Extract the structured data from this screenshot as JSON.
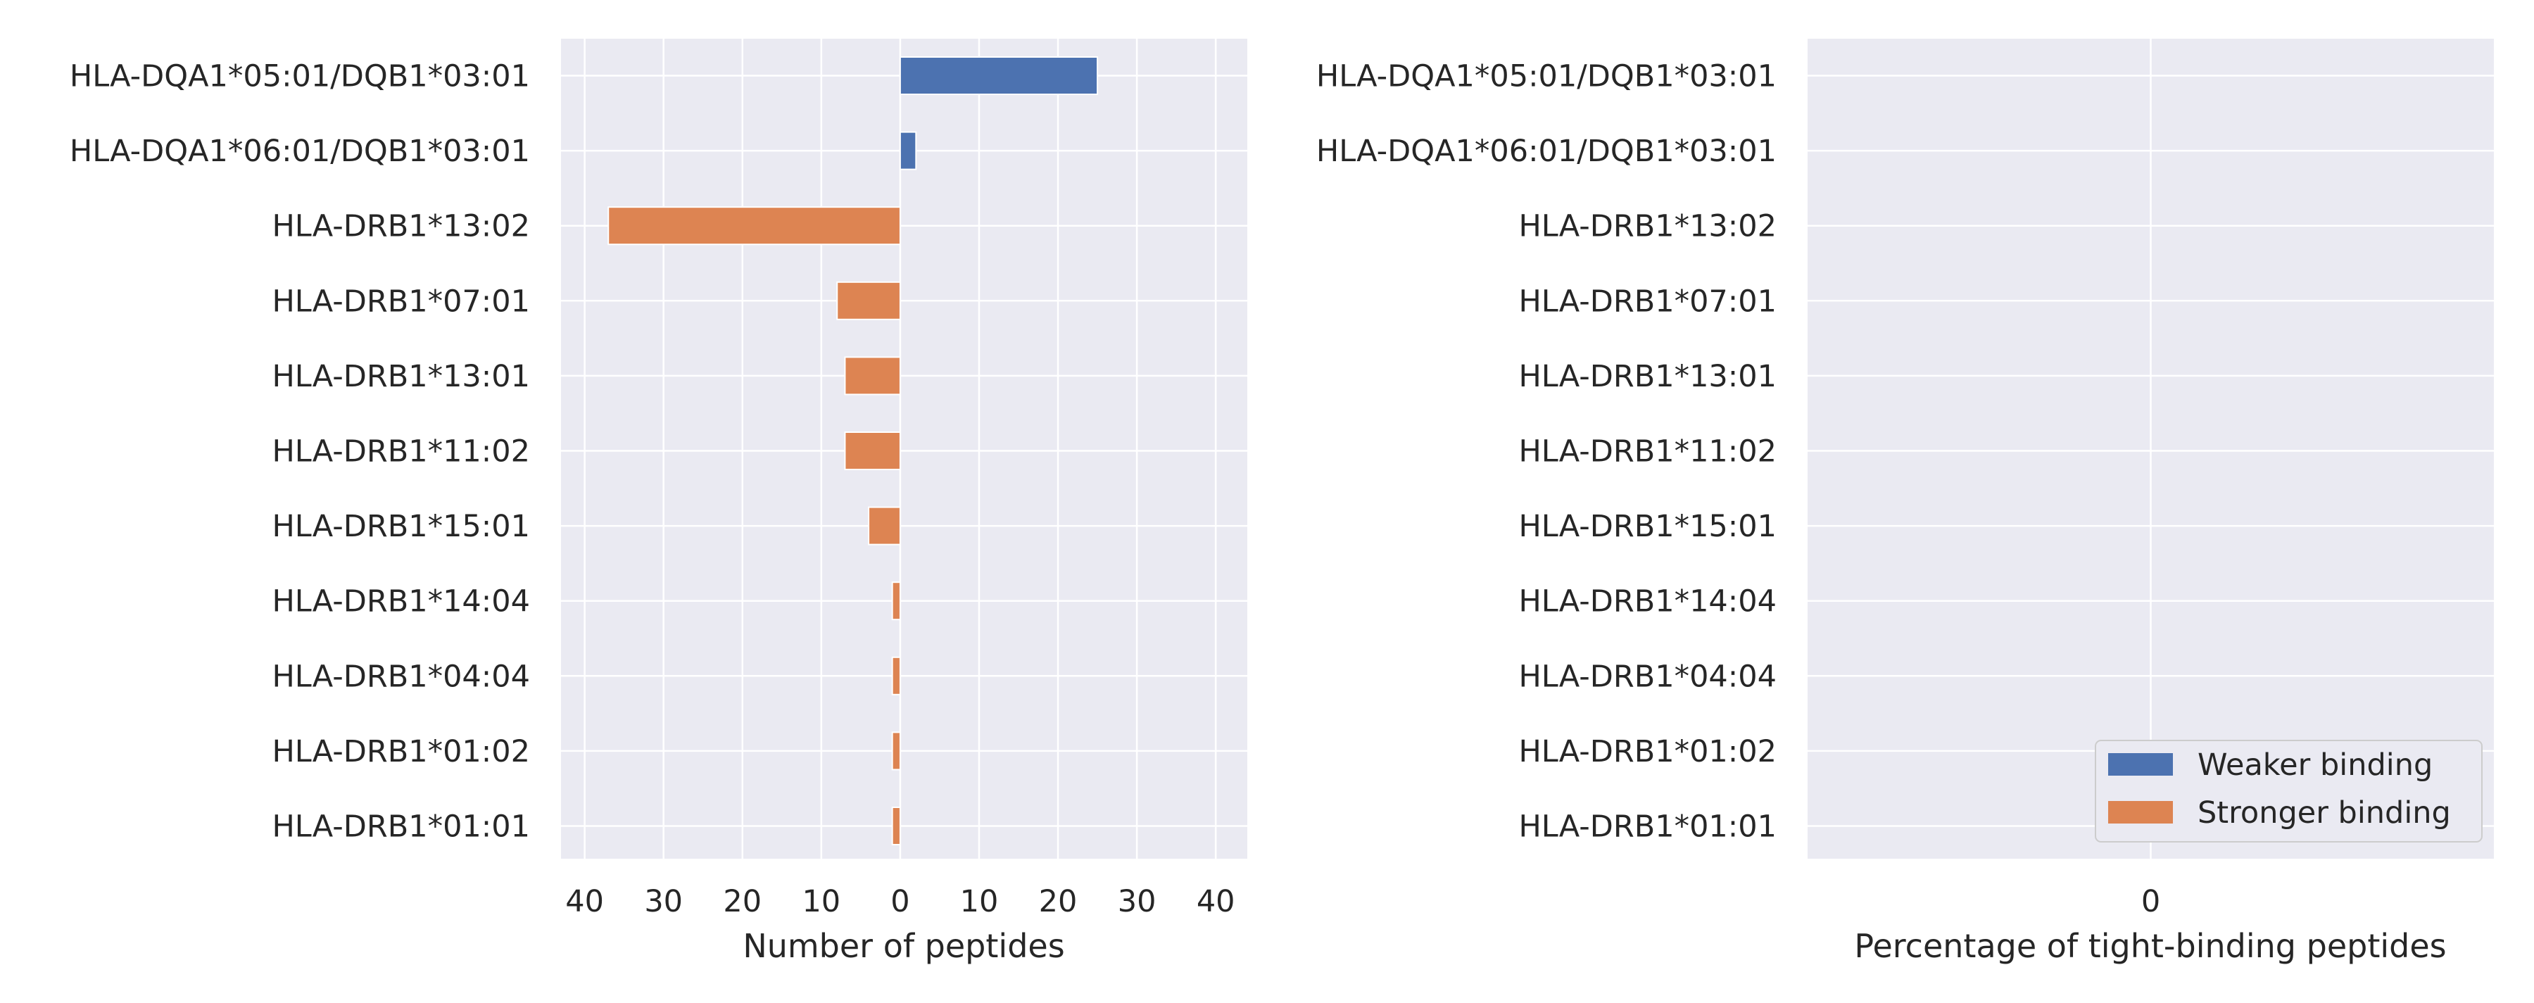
{
  "chart_data": [
    {
      "type": "bar",
      "orientation": "horizontal",
      "categories": [
        "HLA-DQA1*05:01/DQB1*03:01",
        "HLA-DQA1*06:01/DQB1*03:01",
        "HLA-DRB1*13:02",
        "HLA-DRB1*07:01",
        "HLA-DRB1*13:01",
        "HLA-DRB1*11:02",
        "HLA-DRB1*15:01",
        "HLA-DRB1*14:04",
        "HLA-DRB1*04:04",
        "HLA-DRB1*01:02",
        "HLA-DRB1*01:01"
      ],
      "series": [
        {
          "name": "Weaker binding",
          "color": "#4c72b0",
          "values": [
            25,
            2,
            0,
            0,
            0,
            0,
            0,
            0,
            0,
            0,
            0
          ]
        },
        {
          "name": "Stronger binding",
          "color": "#dd8452",
          "values": [
            0,
            0,
            -37,
            -8,
            -7,
            -7,
            -4,
            -1,
            -1,
            -1,
            -1
          ]
        }
      ],
      "xlabel": "Number of peptides",
      "xlim": [
        -43,
        44
      ],
      "xticks": [
        -40,
        -30,
        -20,
        -10,
        0,
        10,
        20,
        30,
        40
      ],
      "xtick_labels": [
        "40",
        "30",
        "20",
        "10",
        "0",
        "10",
        "20",
        "30",
        "40"
      ],
      "grid": true
    },
    {
      "type": "bar",
      "orientation": "horizontal",
      "categories": [
        "HLA-DQA1*05:01/DQB1*03:01",
        "HLA-DQA1*06:01/DQB1*03:01",
        "HLA-DRB1*13:02",
        "HLA-DRB1*07:01",
        "HLA-DRB1*13:01",
        "HLA-DRB1*11:02",
        "HLA-DRB1*15:01",
        "HLA-DRB1*14:04",
        "HLA-DRB1*04:04",
        "HLA-DRB1*01:02",
        "HLA-DRB1*01:01"
      ],
      "series": [],
      "xlabel": "Percentage of tight-binding peptides",
      "xlim": [
        -1,
        1
      ],
      "xticks": [
        0
      ],
      "xtick_labels": [
        "0"
      ],
      "grid": true
    }
  ],
  "legend": {
    "placement": "bottom-right",
    "entries": [
      {
        "label": "Weaker binding",
        "color": "#4c72b0"
      },
      {
        "label": "Stronger binding",
        "color": "#dd8452"
      }
    ]
  },
  "style": {
    "plot_bg": "#eaeaf2",
    "grid_color": "#ffffff"
  }
}
